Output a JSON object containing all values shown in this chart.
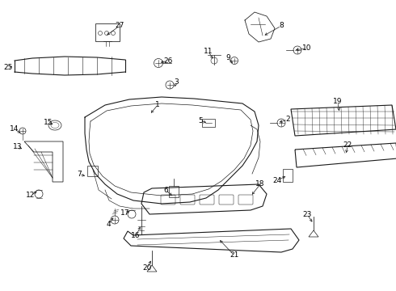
{
  "background_color": "#ffffff",
  "line_color": "#1a1a1a",
  "label_color": "#000000",
  "figsize": [
    4.9,
    3.6
  ],
  "dpi": 100,
  "xlim": [
    0,
    490
  ],
  "ylim": [
    0,
    360
  ]
}
